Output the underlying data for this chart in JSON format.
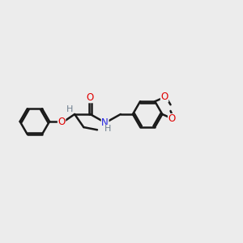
{
  "background_color": "#ececec",
  "bond_color": "#1a1a1a",
  "bond_width": 1.8,
  "atom_colors": {
    "O": "#e00000",
    "N": "#2020e0",
    "H": "#708090"
  },
  "font_size": 8.5,
  "fig_size": [
    3.0,
    3.0
  ],
  "dpi": 100,
  "xlim": [
    0,
    14
  ],
  "ylim": [
    2,
    9
  ]
}
